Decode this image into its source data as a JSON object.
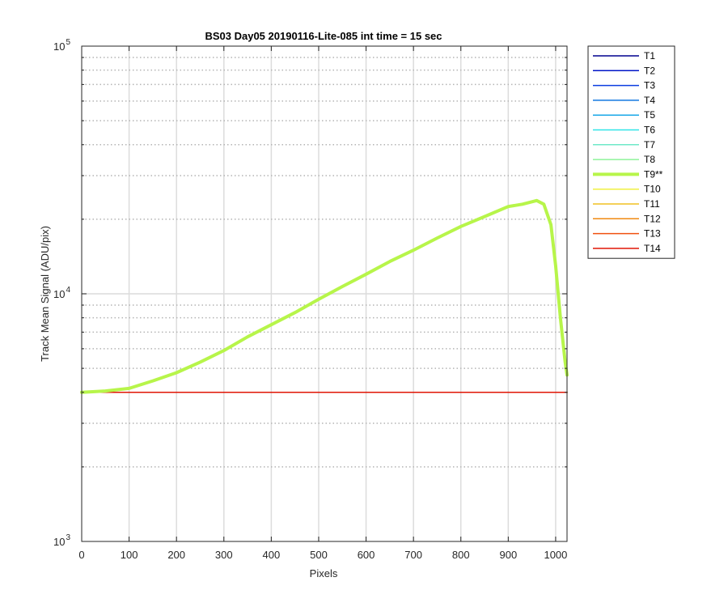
{
  "chart_data": {
    "type": "line",
    "title": "BS03 Day05 20190116-Lite-085 int time = 15 sec",
    "xlabel": "Pixels",
    "ylabel": "Track Mean Signal (ADU/pix)",
    "xlim": [
      0,
      1024
    ],
    "ylim": [
      1000,
      100000
    ],
    "yscale": "log",
    "x_ticks": [
      "0",
      "100",
      "200",
      "300",
      "400",
      "500",
      "600",
      "700",
      "800",
      "900",
      "1000"
    ],
    "x_tick_values": [
      0,
      100,
      200,
      300,
      400,
      500,
      600,
      700,
      800,
      900,
      1000
    ],
    "y_ticks": [
      {
        "base": "10",
        "exp": "3",
        "value": 1000
      },
      {
        "base": "10",
        "exp": "4",
        "value": 10000
      },
      {
        "base": "10",
        "exp": "5",
        "value": 100000
      }
    ],
    "grid": true,
    "legend_position": "outside-right",
    "series": [
      {
        "name": "T1",
        "color": "#00008f",
        "x": [
          0,
          1024
        ],
        "y": [
          4000,
          4000
        ]
      },
      {
        "name": "T2",
        "color": "#0015c8",
        "x": [
          0,
          1024
        ],
        "y": [
          4000,
          4000
        ]
      },
      {
        "name": "T3",
        "color": "#0b3de0",
        "x": [
          0,
          1024
        ],
        "y": [
          4000,
          4000
        ]
      },
      {
        "name": "T4",
        "color": "#1177e0",
        "x": [
          0,
          1024
        ],
        "y": [
          4000,
          4000
        ]
      },
      {
        "name": "T5",
        "color": "#19a8e8",
        "x": [
          0,
          1024
        ],
        "y": [
          4000,
          4000
        ]
      },
      {
        "name": "T6",
        "color": "#30e5e8",
        "x": [
          0,
          1024
        ],
        "y": [
          4000,
          4000
        ]
      },
      {
        "name": "T7",
        "color": "#6fe8c8",
        "x": [
          0,
          1024
        ],
        "y": [
          4000,
          4000
        ]
      },
      {
        "name": "T8",
        "color": "#8ef39a",
        "x": [
          0,
          1024
        ],
        "y": [
          4000,
          4000
        ]
      },
      {
        "name": "T9**",
        "color": "#b7f54a",
        "highlight": true,
        "x": [
          0,
          50,
          100,
          150,
          200,
          250,
          300,
          350,
          400,
          450,
          500,
          550,
          600,
          650,
          700,
          750,
          800,
          850,
          900,
          930,
          960,
          975,
          990,
          1000,
          1010,
          1020,
          1024
        ],
        "y": [
          4000,
          4050,
          4150,
          4450,
          4800,
          5300,
          5900,
          6700,
          7500,
          8400,
          9500,
          10700,
          12000,
          13500,
          15000,
          16800,
          18700,
          20500,
          22500,
          23000,
          23800,
          23000,
          19000,
          13000,
          8000,
          5300,
          4700
        ]
      },
      {
        "name": "T10",
        "color": "#f0f040",
        "x": [
          0,
          1024
        ],
        "y": [
          4000,
          4000
        ]
      },
      {
        "name": "T11",
        "color": "#f0c020",
        "x": [
          0,
          1024
        ],
        "y": [
          4000,
          4000
        ]
      },
      {
        "name": "T12",
        "color": "#f08a10",
        "x": [
          0,
          1024
        ],
        "y": [
          4000,
          4000
        ]
      },
      {
        "name": "T13",
        "color": "#f05010",
        "x": [
          0,
          1024
        ],
        "y": [
          4000,
          4000
        ]
      },
      {
        "name": "T14",
        "color": "#e01505",
        "x": [
          0,
          1024
        ],
        "y": [
          4000,
          4000
        ]
      }
    ]
  }
}
